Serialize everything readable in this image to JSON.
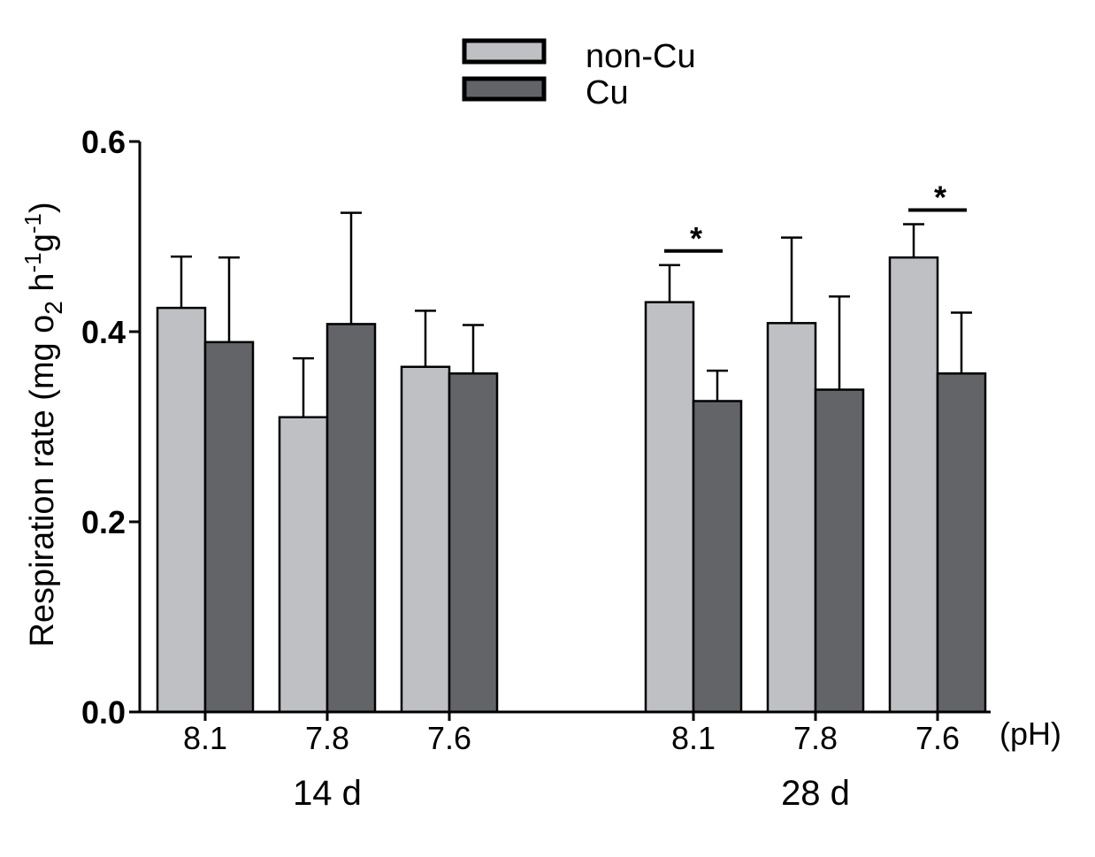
{
  "chart_data": {
    "type": "bar",
    "title": "",
    "ylabel": "Respiration rate (mg O2 h-1g-1)",
    "ylabel_parts": {
      "main": "Respiration rate (mg o",
      "sub": "2",
      "mid": " h",
      "sup1": "-1",
      "g": "g",
      "sup2": "-1",
      "end": ")"
    },
    "xlabel_unit": "(pH)",
    "ylim": [
      0,
      0.6
    ],
    "yticks": [
      "0.0",
      "0.2",
      "0.4",
      "0.6"
    ],
    "ytick_values": [
      0,
      0.2,
      0.4,
      0.6
    ],
    "legend_placement": "top-center",
    "groups": [
      {
        "label": "14 d",
        "categories": [
          "8.1",
          "7.8",
          "7.6"
        ]
      },
      {
        "label": "28 d",
        "categories": [
          "8.1",
          "7.8",
          "7.6"
        ]
      }
    ],
    "series": [
      {
        "name": "non-Cu",
        "color": "#bfc0c4",
        "values": [
          0.425,
          0.31,
          0.363,
          0.431,
          0.409,
          0.478
        ],
        "error_upper": [
          0.479,
          0.372,
          0.422,
          0.47,
          0.499,
          0.513
        ]
      },
      {
        "name": "Cu",
        "color": "#636468",
        "values": [
          0.389,
          0.408,
          0.356,
          0.327,
          0.339,
          0.356
        ],
        "error_upper": [
          0.478,
          0.525,
          0.407,
          0.359,
          0.437,
          0.42
        ]
      }
    ],
    "significance": [
      {
        "group": "28 d",
        "category": "8.1",
        "label": "*"
      },
      {
        "group": "28 d",
        "category": "7.6",
        "label": "*"
      }
    ]
  }
}
